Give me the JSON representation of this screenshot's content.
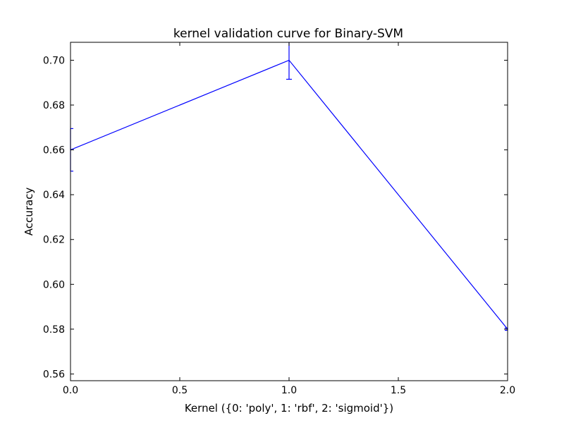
{
  "chart_data": {
    "type": "line",
    "title": "kernel validation curve for Binary-SVM",
    "xlabel": "Kernel ({0: 'poly', 1: 'rbf', 2: 'sigmoid'})",
    "ylabel": "Accuracy",
    "xlim": [
      0.0,
      2.0
    ],
    "ylim": [
      0.557,
      0.708
    ],
    "grid": false,
    "x_ticks": [
      0.0,
      0.5,
      1.0,
      1.5,
      2.0
    ],
    "x_tick_labels": [
      "0.0",
      "0.5",
      "1.0",
      "1.5",
      "2.0"
    ],
    "y_ticks": [
      0.56,
      0.58,
      0.6,
      0.62,
      0.64,
      0.66,
      0.68,
      0.7
    ],
    "y_tick_labels": [
      "0.56",
      "0.58",
      "0.60",
      "0.62",
      "0.64",
      "0.66",
      "0.68",
      "0.70"
    ],
    "series": [
      {
        "color": "#0000ff",
        "x": [
          0,
          1,
          2
        ],
        "y": [
          0.66,
          0.7,
          0.58
        ],
        "yerr": [
          0.0095,
          0.0085,
          0.0005
        ]
      }
    ]
  }
}
